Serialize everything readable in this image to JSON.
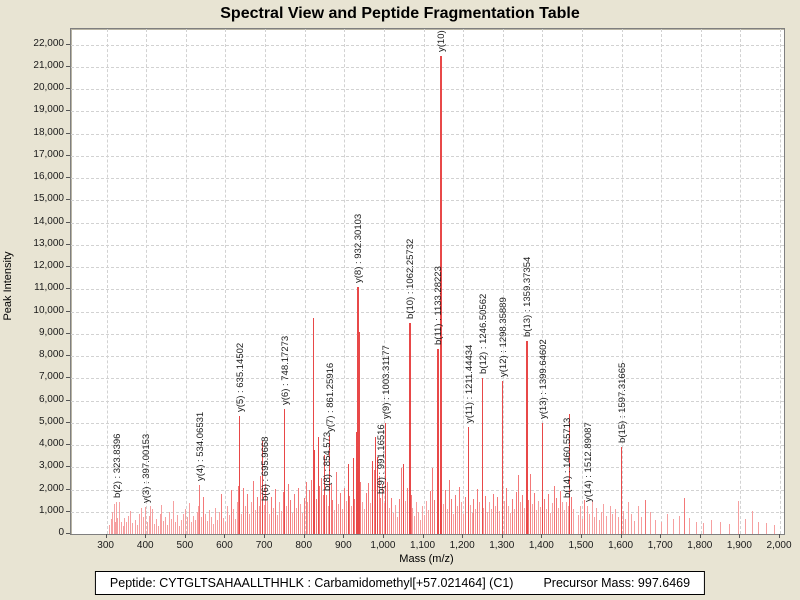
{
  "title": "Spectral View and Peptide Fragmentation Table",
  "y_axis_title": "Peak Intensity",
  "x_axis_title": "Mass (m/z)",
  "footer": {
    "peptide": "Peptide: CYTGLTSAHAALLTHHLK : Carbamidomethyl[+57.021464] (C1)",
    "precursor": "Precursor Mass: 997.6469"
  },
  "chart_data": {
    "type": "bar",
    "title": "Spectral View and Peptide Fragmentation Table",
    "xlabel": "Mass (m/z)",
    "ylabel": "Peak Intensity",
    "xlim": [
      210,
      2010
    ],
    "ylim": [
      0,
      22700
    ],
    "x_tick_min": 300,
    "x_tick_max": 2000,
    "x_tick_step": 100,
    "y_tick_min": 0,
    "y_tick_max": 22000,
    "y_tick_step": 1000,
    "grid": "dashed",
    "legend": "none",
    "colors": {
      "background": "#e8e4d3",
      "plot_background": "#ffffff",
      "gridline": "#d2d2d2",
      "peak_strong": "#e84848",
      "peak_medium": "#f37878",
      "peak_weak": "#f6a0a0",
      "label_text": "#1c1c1c"
    },
    "labeled_peaks": [
      {
        "label": "b(2) : 323.8396",
        "mz": 323.84,
        "intensity": 1450
      },
      {
        "label": "y(3) : 397.00153",
        "mz": 397.0,
        "intensity": 1200
      },
      {
        "label": "y(4) : 534.06531",
        "mz": 534.07,
        "intensity": 2200
      },
      {
        "label": "y(5) : 635.14502",
        "mz": 635.15,
        "intensity": 5300
      },
      {
        "label": "b(6) : 695.9668",
        "mz": 695.97,
        "intensity": 1300
      },
      {
        "label": "y(6) : 748.17273",
        "mz": 748.17,
        "intensity": 5600
      },
      {
        "label": "b(8) : 854.573",
        "mz": 854.57,
        "intensity": 1750
      },
      {
        "label": "y(7) : 861.25916",
        "mz": 861.26,
        "intensity": 4400
      },
      {
        "label": "y(8) : 932.30103",
        "mz": 932.3,
        "intensity": 11100
      },
      {
        "label": "b(9) : 991.16516",
        "mz": 991.17,
        "intensity": 1600
      },
      {
        "label": "y(9) : 1003.31177",
        "mz": 1003.31,
        "intensity": 5000
      },
      {
        "label": "b(10) : 1062.25732",
        "mz": 1062.26,
        "intensity": 9500
      },
      {
        "label": "b(11) : 1133.28223",
        "mz": 1133.28,
        "intensity": 8300
      },
      {
        "label": "y(10)",
        "mz": 1140.5,
        "intensity": 21500
      },
      {
        "label": "y(11) : 1211.44434",
        "mz": 1211.44,
        "intensity": 4800
      },
      {
        "label": "b(12) : 1246.50562",
        "mz": 1246.51,
        "intensity": 7000
      },
      {
        "label": "y(12) : 1298.35889",
        "mz": 1298.36,
        "intensity": 6900
      },
      {
        "label": "b(13) : 1359.37354",
        "mz": 1359.37,
        "intensity": 8700
      },
      {
        "label": "y(13) : 1399.64602",
        "mz": 1399.65,
        "intensity": 5000
      },
      {
        "label": "b(14) : 1460.55713",
        "mz": 1460.56,
        "intensity": 1450
      },
      {
        "label": "y(14) : 1512.89087",
        "mz": 1512.89,
        "intensity": 1250
      },
      {
        "label": "b(15) : 1597.31665",
        "mz": 1597.32,
        "intensity": 3900
      }
    ],
    "noise_peaks": [
      [
        305,
        420
      ],
      [
        310,
        660
      ],
      [
        314,
        980
      ],
      [
        318,
        1350
      ],
      [
        321,
        520
      ],
      [
        327,
        700
      ],
      [
        331,
        1430
      ],
      [
        335,
        540
      ],
      [
        340,
        380
      ],
      [
        344,
        720
      ],
      [
        349,
        560
      ],
      [
        355,
        830
      ],
      [
        360,
        1020
      ],
      [
        365,
        480
      ],
      [
        371,
        640
      ],
      [
        376,
        390
      ],
      [
        381,
        900
      ],
      [
        386,
        1180
      ],
      [
        391,
        760
      ],
      [
        401,
        540
      ],
      [
        406,
        830
      ],
      [
        410,
        1280
      ],
      [
        414,
        1120
      ],
      [
        419,
        460
      ],
      [
        424,
        680
      ],
      [
        429,
        350
      ],
      [
        434,
        920
      ],
      [
        438,
        1310
      ],
      [
        443,
        570
      ],
      [
        448,
        760
      ],
      [
        452,
        420
      ],
      [
        457,
        980
      ],
      [
        462,
        690
      ],
      [
        467,
        1480
      ],
      [
        472,
        560
      ],
      [
        477,
        840
      ],
      [
        482,
        380
      ],
      [
        487,
        640
      ],
      [
        492,
        900
      ],
      [
        497,
        1120
      ],
      [
        502,
        760
      ],
      [
        507,
        1380
      ],
      [
        512,
        540
      ],
      [
        517,
        820
      ],
      [
        522,
        620
      ],
      [
        527,
        980
      ],
      [
        531,
        1240
      ],
      [
        538,
        760
      ],
      [
        543,
        1650
      ],
      [
        548,
        920
      ],
      [
        553,
        580
      ],
      [
        558,
        1080
      ],
      [
        563,
        780
      ],
      [
        568,
        460
      ],
      [
        573,
        1180
      ],
      [
        578,
        640
      ],
      [
        583,
        980
      ],
      [
        588,
        1820
      ],
      [
        593,
        720
      ],
      [
        598,
        560
      ],
      [
        603,
        1280
      ],
      [
        608,
        840
      ],
      [
        613,
        1980
      ],
      [
        618,
        1140
      ],
      [
        623,
        680
      ],
      [
        628,
        1420
      ],
      [
        632,
        2150
      ],
      [
        639,
        880
      ],
      [
        644,
        2060
      ],
      [
        649,
        1240
      ],
      [
        654,
        1780
      ],
      [
        659,
        920
      ],
      [
        664,
        1460
      ],
      [
        669,
        2380
      ],
      [
        674,
        1080
      ],
      [
        679,
        1680
      ],
      [
        684,
        1240
      ],
      [
        688,
        2600
      ],
      [
        691,
        4200
      ],
      [
        700,
        2240
      ],
      [
        705,
        1480
      ],
      [
        710,
        920
      ],
      [
        714,
        1660
      ],
      [
        719,
        1180
      ],
      [
        724,
        2020
      ],
      [
        729,
        860
      ],
      [
        734,
        1440
      ],
      [
        739,
        1040
      ],
      [
        744,
        1880
      ],
      [
        752,
        1280
      ],
      [
        757,
        2260
      ],
      [
        762,
        1520
      ],
      [
        767,
        940
      ],
      [
        772,
        1780
      ],
      [
        777,
        1160
      ],
      [
        782,
        2080
      ],
      [
        787,
        1340
      ],
      [
        792,
        960
      ],
      [
        797,
        1620
      ],
      [
        802,
        2320
      ],
      [
        806,
        1460
      ],
      [
        811,
        1980
      ],
      [
        816,
        2440
      ],
      [
        820,
        9700
      ],
      [
        824,
        3780
      ],
      [
        828,
        1560
      ],
      [
        833,
        4350
      ],
      [
        837,
        2180
      ],
      [
        841,
        2520
      ],
      [
        845,
        1760
      ],
      [
        849,
        3550
      ],
      [
        858,
        1240
      ],
      [
        866,
        2240
      ],
      [
        870,
        1520
      ],
      [
        875,
        1080
      ],
      [
        880,
        2780
      ],
      [
        884,
        1340
      ],
      [
        889,
        1860
      ],
      [
        893,
        1140
      ],
      [
        898,
        2060
      ],
      [
        903,
        1480
      ],
      [
        908,
        3150
      ],
      [
        912,
        1720
      ],
      [
        917,
        1260
      ],
      [
        921,
        3420
      ],
      [
        925,
        1580
      ],
      [
        929,
        4580
      ],
      [
        936,
        9100
      ],
      [
        940,
        2340
      ],
      [
        945,
        1460
      ],
      [
        950,
        1120
      ],
      [
        955,
        1840
      ],
      [
        960,
        2280
      ],
      [
        965,
        1380
      ],
      [
        969,
        3280
      ],
      [
        974,
        2860
      ],
      [
        978,
        4380
      ],
      [
        983,
        3480
      ],
      [
        987,
        2620
      ],
      [
        996,
        2240
      ],
      [
        1000,
        1380
      ],
      [
        1008,
        2320
      ],
      [
        1013,
        1180
      ],
      [
        1018,
        1640
      ],
      [
        1023,
        960
      ],
      [
        1028,
        1320
      ],
      [
        1033,
        780
      ],
      [
        1038,
        1560
      ],
      [
        1043,
        2960
      ],
      [
        1048,
        3140
      ],
      [
        1053,
        1480
      ],
      [
        1058,
        2080
      ],
      [
        1067,
        1740
      ],
      [
        1072,
        1180
      ],
      [
        1077,
        820
      ],
      [
        1082,
        1420
      ],
      [
        1087,
        980
      ],
      [
        1092,
        640
      ],
      [
        1097,
        1240
      ],
      [
        1102,
        860
      ],
      [
        1107,
        1480
      ],
      [
        1112,
        1060
      ],
      [
        1117,
        1940
      ],
      [
        1122,
        2980
      ],
      [
        1127,
        1520
      ],
      [
        1137,
        1780
      ],
      [
        1145,
        2260
      ],
      [
        1150,
        1340
      ],
      [
        1155,
        1980
      ],
      [
        1160,
        1120
      ],
      [
        1165,
        2440
      ],
      [
        1170,
        1560
      ],
      [
        1175,
        920
      ],
      [
        1180,
        1760
      ],
      [
        1185,
        1280
      ],
      [
        1190,
        2120
      ],
      [
        1195,
        1440
      ],
      [
        1200,
        880
      ],
      [
        1205,
        1680
      ],
      [
        1216,
        1320
      ],
      [
        1221,
        940
      ],
      [
        1226,
        1580
      ],
      [
        1231,
        1140
      ],
      [
        1236,
        2040
      ],
      [
        1241,
        1460
      ],
      [
        1251,
        1180
      ],
      [
        1256,
        1720
      ],
      [
        1261,
        980
      ],
      [
        1266,
        1440
      ],
      [
        1271,
        1120
      ],
      [
        1276,
        1820
      ],
      [
        1281,
        1260
      ],
      [
        1286,
        1680
      ],
      [
        1291,
        1040
      ],
      [
        1303,
        1480
      ],
      [
        1308,
        2060
      ],
      [
        1313,
        1240
      ],
      [
        1318,
        960
      ],
      [
        1323,
        1560
      ],
      [
        1328,
        1120
      ],
      [
        1333,
        1880
      ],
      [
        1338,
        2640
      ],
      [
        1343,
        1420
      ],
      [
        1348,
        1760
      ],
      [
        1353,
        1180
      ],
      [
        1364,
        1520
      ],
      [
        1369,
        2700
      ],
      [
        1374,
        1340
      ],
      [
        1379,
        1860
      ],
      [
        1384,
        1080
      ],
      [
        1389,
        1480
      ],
      [
        1394,
        1220
      ],
      [
        1404,
        1560
      ],
      [
        1409,
        1120
      ],
      [
        1414,
        1820
      ],
      [
        1419,
        940
      ],
      [
        1424,
        1380
      ],
      [
        1429,
        2160
      ],
      [
        1434,
        1640
      ],
      [
        1439,
        1180
      ],
      [
        1444,
        1940
      ],
      [
        1449,
        1420
      ],
      [
        1454,
        1060
      ],
      [
        1464,
        1280
      ],
      [
        1468,
        5400
      ],
      [
        1473,
        1680
      ],
      [
        1478,
        1140
      ],
      [
        1489,
        860
      ],
      [
        1494,
        1240
      ],
      [
        1499,
        680
      ],
      [
        1505,
        1520
      ],
      [
        1518,
        920
      ],
      [
        1524,
        1480
      ],
      [
        1530,
        760
      ],
      [
        1536,
        1180
      ],
      [
        1542,
        640
      ],
      [
        1548,
        980
      ],
      [
        1554,
        1360
      ],
      [
        1560,
        820
      ],
      [
        1570,
        1240
      ],
      [
        1576,
        880
      ],
      [
        1583,
        1120
      ],
      [
        1590,
        760
      ],
      [
        1603,
        1040
      ],
      [
        1609,
        680
      ],
      [
        1616,
        1420
      ],
      [
        1623,
        920
      ],
      [
        1632,
        580
      ],
      [
        1641,
        1280
      ],
      [
        1650,
        760
      ],
      [
        1660,
        1520
      ],
      [
        1672,
        980
      ],
      [
        1685,
        640
      ],
      [
        1700,
        560
      ],
      [
        1715,
        900
      ],
      [
        1730,
        680
      ],
      [
        1745,
        820
      ],
      [
        1758,
        1620
      ],
      [
        1770,
        720
      ],
      [
        1788,
        560
      ],
      [
        1805,
        480
      ],
      [
        1825,
        640
      ],
      [
        1848,
        520
      ],
      [
        1870,
        460
      ],
      [
        1895,
        1480
      ],
      [
        1912,
        680
      ],
      [
        1928,
        1040
      ],
      [
        1945,
        560
      ],
      [
        1965,
        480
      ],
      [
        1985,
        420
      ]
    ]
  }
}
